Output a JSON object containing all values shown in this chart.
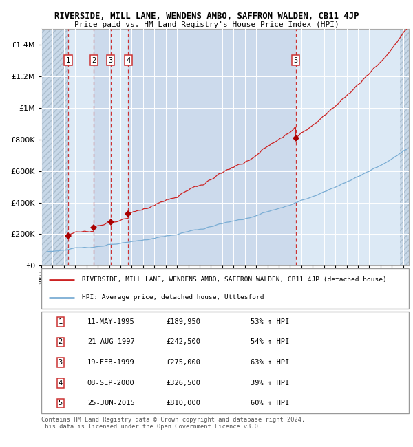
{
  "title": "RIVERSIDE, MILL LANE, WENDENS AMBO, SAFFRON WALDEN, CB11 4JP",
  "subtitle": "Price paid vs. HM Land Registry's House Price Index (HPI)",
  "ylim": [
    0,
    1500000
  ],
  "yticks": [
    0,
    200000,
    400000,
    600000,
    800000,
    1000000,
    1200000,
    1400000
  ],
  "ytick_labels": [
    "£0",
    "£200K",
    "£400K",
    "£600K",
    "£800K",
    "£1M",
    "£1.2M",
    "£1.4M"
  ],
  "xlim_start": 1993.0,
  "xlim_end": 2025.5,
  "hpi_color": "#7aadd4",
  "price_color": "#cc2222",
  "sale_marker_color": "#aa0000",
  "sale_dates_x": [
    1995.36,
    1997.64,
    1999.13,
    2000.69,
    2015.49
  ],
  "sale_prices_y": [
    189950,
    242500,
    275000,
    326500,
    810000
  ],
  "sale_labels": [
    "1",
    "2",
    "3",
    "4",
    "5"
  ],
  "legend_price_label": "RIVERSIDE, MILL LANE, WENDENS AMBO, SAFFRON WALDEN, CB11 4JP (detached house)",
  "legend_hpi_label": "HPI: Average price, detached house, Uttlesford",
  "table_rows": [
    [
      "1",
      "11-MAY-1995",
      "£189,950",
      "53% ↑ HPI"
    ],
    [
      "2",
      "21-AUG-1997",
      "£242,500",
      "54% ↑ HPI"
    ],
    [
      "3",
      "19-FEB-1999",
      "£275,000",
      "63% ↑ HPI"
    ],
    [
      "4",
      "08-SEP-2000",
      "£326,500",
      "39% ↑ HPI"
    ],
    [
      "5",
      "25-JUN-2015",
      "£810,000",
      "60% ↑ HPI"
    ]
  ],
  "footer": "Contains HM Land Registry data © Crown copyright and database right 2024.\nThis data is licensed under the Open Government Licence v3.0.",
  "bg_color": "#dce9f5",
  "grid_color": "#ffffff",
  "dashed_line_color": "#cc3333",
  "hatch_edgecolor": "#aabccc"
}
